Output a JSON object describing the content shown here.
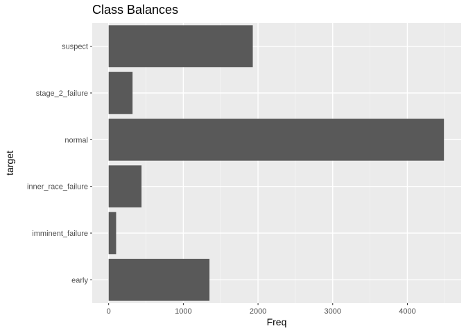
{
  "chart_data": {
    "type": "bar",
    "orientation": "horizontal",
    "title": "Class Balances",
    "xlabel": "Freq",
    "ylabel": "target",
    "categories": [
      "early",
      "imminent_failure",
      "inner_race_failure",
      "normal",
      "stage_2_failure",
      "suspect"
    ],
    "values": [
      1350,
      100,
      440,
      4490,
      320,
      1930
    ],
    "xlim": [
      -220,
      4720
    ],
    "xticks": [
      "0",
      "1000",
      "2000",
      "3000",
      "4000"
    ],
    "xtick_values": [
      0,
      1000,
      2000,
      3000,
      4000
    ],
    "grid": true,
    "legend": "none",
    "colors": {
      "bar": "#595959",
      "panel": "#ebebeb",
      "grid_major": "#ffffff",
      "grid_minor": "#f5f5f5",
      "tick_text": "#4d4d4d"
    }
  }
}
